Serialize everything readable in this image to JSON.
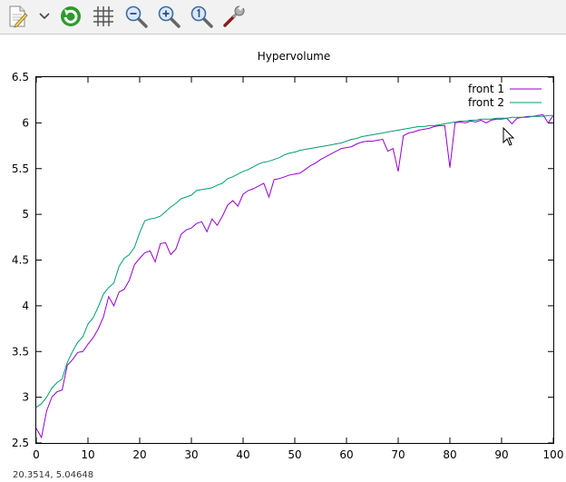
{
  "toolbar": {
    "icons": [
      "copy-to-clipboard-icon",
      "dropdown-arrow-icon",
      "replot-icon",
      "grid-icon",
      "zoom-out-icon",
      "zoom-in-icon",
      "zoom-reset-icon",
      "settings-wrench-icon"
    ]
  },
  "status": {
    "coords": "20.3514,  5.04648"
  },
  "chart_data": {
    "type": "line",
    "title": "Hypervolume",
    "xlabel": "",
    "ylabel": "",
    "xlim": [
      0,
      100
    ],
    "ylim": [
      2.5,
      6.5
    ],
    "xticks": [
      "0",
      "10",
      "20",
      "30",
      "40",
      "50",
      "60",
      "70",
      "80",
      "90",
      "100"
    ],
    "yticks": [
      "2.5",
      "3",
      "3.5",
      "4",
      "4.5",
      "5",
      "5.5",
      "6",
      "6.5"
    ],
    "grid": false,
    "legend_position": "top-right",
    "series": [
      {
        "name": "front 1",
        "color": "#9400d3",
        "x": [
          0,
          1,
          2,
          3,
          4,
          5,
          6,
          7,
          8,
          9,
          10,
          11,
          12,
          13,
          14,
          15,
          16,
          17,
          18,
          19,
          20,
          21,
          22,
          23,
          24,
          25,
          26,
          27,
          28,
          29,
          30,
          31,
          32,
          33,
          34,
          35,
          36,
          37,
          38,
          39,
          40,
          41,
          42,
          43,
          44,
          45,
          46,
          47,
          48,
          49,
          50,
          51,
          52,
          53,
          54,
          55,
          56,
          57,
          58,
          59,
          60,
          61,
          62,
          63,
          64,
          65,
          66,
          67,
          68,
          69,
          70,
          71,
          72,
          73,
          74,
          75,
          76,
          77,
          78,
          79,
          80,
          81,
          82,
          83,
          84,
          85,
          86,
          87,
          88,
          89,
          90,
          91,
          92,
          93,
          94,
          95,
          96,
          97,
          98,
          99,
          100
        ],
        "y": [
          2.66,
          2.56,
          2.85,
          3.0,
          3.06,
          3.08,
          3.35,
          3.41,
          3.49,
          3.5,
          3.58,
          3.65,
          3.75,
          3.88,
          4.1,
          4.0,
          4.15,
          4.18,
          4.28,
          4.45,
          4.52,
          4.58,
          4.6,
          4.48,
          4.68,
          4.69,
          4.56,
          4.62,
          4.78,
          4.83,
          4.85,
          4.9,
          4.92,
          4.81,
          4.95,
          4.88,
          4.98,
          5.1,
          5.15,
          5.09,
          5.22,
          5.26,
          5.28,
          5.31,
          5.34,
          5.19,
          5.38,
          5.39,
          5.41,
          5.43,
          5.44,
          5.45,
          5.49,
          5.53,
          5.56,
          5.6,
          5.63,
          5.66,
          5.69,
          5.72,
          5.73,
          5.74,
          5.77,
          5.79,
          5.8,
          5.8,
          5.81,
          5.82,
          5.69,
          5.72,
          5.47,
          5.86,
          5.89,
          5.9,
          5.92,
          5.93,
          5.94,
          5.96,
          5.97,
          5.97,
          5.51,
          6.0,
          6.01,
          6.0,
          6.02,
          6.01,
          6.03,
          6.0,
          6.03,
          6.04,
          6.04,
          6.05,
          5.99,
          6.05,
          6.06,
          6.07,
          6.07,
          6.08,
          6.09,
          6.0,
          6.08
        ]
      },
      {
        "name": "front 2",
        "color": "#009e73",
        "x": [
          0,
          1,
          2,
          3,
          4,
          5,
          6,
          7,
          8,
          9,
          10,
          11,
          12,
          13,
          14,
          15,
          16,
          17,
          18,
          19,
          20,
          21,
          22,
          23,
          24,
          25,
          26,
          27,
          28,
          29,
          30,
          31,
          32,
          33,
          34,
          35,
          36,
          37,
          38,
          39,
          40,
          41,
          42,
          43,
          44,
          45,
          46,
          47,
          48,
          49,
          50,
          51,
          52,
          53,
          54,
          55,
          56,
          57,
          58,
          59,
          60,
          61,
          62,
          63,
          64,
          65,
          66,
          67,
          68,
          69,
          70,
          71,
          72,
          73,
          74,
          75,
          76,
          77,
          78,
          79,
          80,
          81,
          82,
          83,
          84,
          85,
          86,
          87,
          88,
          89,
          90,
          91,
          92,
          93,
          94,
          95,
          96,
          97,
          98,
          99,
          100
        ],
        "y": [
          2.89,
          2.93,
          3.0,
          3.1,
          3.16,
          3.2,
          3.38,
          3.5,
          3.6,
          3.66,
          3.8,
          3.87,
          3.99,
          4.13,
          4.2,
          4.25,
          4.43,
          4.52,
          4.56,
          4.64,
          4.8,
          4.93,
          4.95,
          4.96,
          4.98,
          5.03,
          5.08,
          5.12,
          5.17,
          5.19,
          5.21,
          5.26,
          5.27,
          5.28,
          5.29,
          5.32,
          5.34,
          5.39,
          5.41,
          5.44,
          5.47,
          5.49,
          5.52,
          5.55,
          5.57,
          5.58,
          5.6,
          5.62,
          5.65,
          5.67,
          5.68,
          5.7,
          5.71,
          5.72,
          5.73,
          5.74,
          5.75,
          5.76,
          5.77,
          5.78,
          5.8,
          5.82,
          5.83,
          5.85,
          5.86,
          5.87,
          5.88,
          5.89,
          5.9,
          5.91,
          5.92,
          5.93,
          5.94,
          5.95,
          5.96,
          5.96,
          5.97,
          5.97,
          5.98,
          5.99,
          6.0,
          6.01,
          6.02,
          6.02,
          6.03,
          6.03,
          6.04,
          6.04,
          6.04,
          6.05,
          6.05,
          6.05,
          6.06,
          6.06,
          6.06,
          6.06,
          6.07,
          6.07,
          6.07,
          6.08,
          6.08
        ]
      }
    ]
  }
}
